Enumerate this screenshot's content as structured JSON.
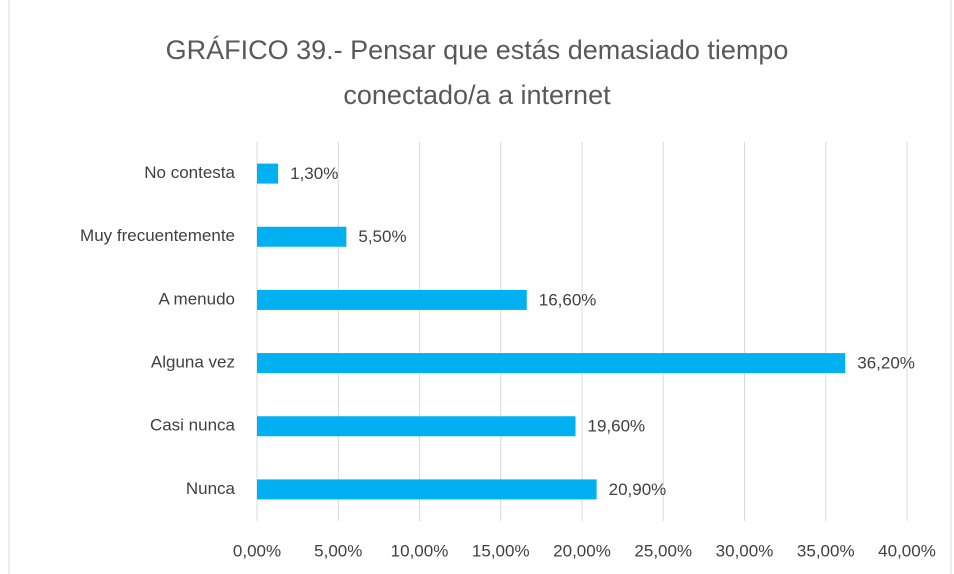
{
  "chart_data": {
    "type": "barh",
    "title": "GRÁFICO 39.- Pensar que estás demasiado tiempo conectado/a a internet",
    "categories": [
      "No contesta",
      "Muy frecuentemente",
      "A menudo",
      "Alguna vez",
      "Casi nunca",
      "Nunca"
    ],
    "values": [
      1.3,
      5.5,
      16.6,
      36.2,
      19.6,
      20.9
    ],
    "value_labels": [
      "1,30%",
      "5,50%",
      "16,60%",
      "36,20%",
      "19,60%",
      "20,90%"
    ],
    "color": "#00b0f0",
    "xlim": [
      0,
      40
    ],
    "xticks": [
      {
        "value": 0,
        "label": "0,00%"
      },
      {
        "value": 5,
        "label": "5,00%"
      },
      {
        "value": 10,
        "label": "10,00%"
      },
      {
        "value": 15,
        "label": "15,00%"
      },
      {
        "value": 20,
        "label": "20,00%"
      },
      {
        "value": 25,
        "label": "25,00%"
      },
      {
        "value": 30,
        "label": "30,00%"
      },
      {
        "value": 35,
        "label": "35,00%"
      },
      {
        "value": 40,
        "label": "40,00%"
      }
    ],
    "grid": true
  }
}
